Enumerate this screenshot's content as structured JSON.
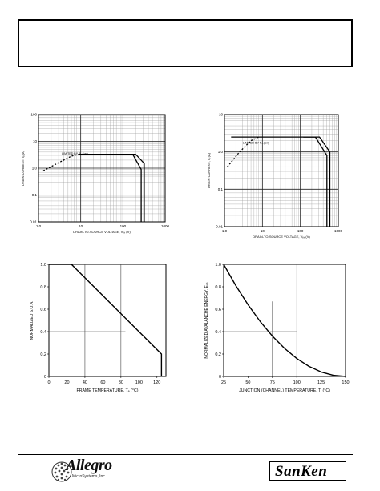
{
  "charts": {
    "soa_tl": {
      "type": "line",
      "scale": "log-log",
      "xlabel": "DRAIN-TO-SOURCE VOLTAGE, Vₑₛ (V)",
      "ylabel": "DRAIN CURRENT, Iₐ (A)",
      "x_ticks": [
        "1.0",
        "10",
        "100",
        "1000"
      ],
      "y_ticks": [
        "100",
        "10",
        "1.0",
        "0.1",
        "0.01"
      ],
      "xlim": [
        1,
        1000
      ],
      "ylim": [
        0.01,
        100
      ],
      "annotation": "LIMITED BY Rₐₛ(on)",
      "series": [
        {
          "style": "dashed",
          "x": [
            1.3,
            3.0,
            6.0,
            9.0
          ],
          "y": [
            0.8,
            1.6,
            2.8,
            3.3
          ]
        },
        {
          "style": "solid",
          "x": [
            9,
            100,
            170,
            270,
            270
          ],
          "y": [
            3.3,
            3.3,
            3.3,
            0.9,
            0.01
          ]
        },
        {
          "style": "solid",
          "x": [
            100,
            200,
            320,
            320
          ],
          "y": [
            3.3,
            3.3,
            1.5,
            0.01
          ]
        }
      ]
    },
    "soa_tr": {
      "type": "line",
      "scale": "log-log",
      "xlabel": "DRAIN-TO-SOURCE VOLTAGE, Vₑₛ (V)",
      "ylabel": "DRAIN CURRENT, Iₐ (A)",
      "x_ticks": [
        "1.0",
        "10",
        "100",
        "1000"
      ],
      "y_ticks": [
        "10",
        "1.0",
        "0.1",
        "0.01"
      ],
      "xlim": [
        1,
        1000
      ],
      "ylim": [
        0.01,
        10
      ],
      "annotation": "LIMITED BY Rₐₛ(on)",
      "series": [
        {
          "style": "dashed",
          "x": [
            1.2,
            2.5,
            5.0,
            8.0
          ],
          "y": [
            0.4,
            1.0,
            2.0,
            2.5
          ]
        },
        {
          "style": "solid",
          "x": [
            1.5,
            120,
            250,
            500,
            500
          ],
          "y": [
            2.5,
            2.5,
            2.5,
            0.8,
            0.01
          ]
        },
        {
          "style": "solid",
          "x": [
            120,
            320,
            600,
            600
          ],
          "y": [
            2.5,
            2.5,
            1.0,
            0.01
          ]
        }
      ]
    },
    "derate": {
      "type": "line",
      "xlabel": "FRAME TEMPERATURE, Tₑ (°C)",
      "ylabel": "NORMALIZED S.O.A.",
      "x_ticks": [
        "0",
        "20",
        "40",
        "60",
        "80",
        "100",
        "120"
      ],
      "y_ticks": [
        "0",
        "0.2",
        "0.4",
        "0.6",
        "0.8",
        "1.0"
      ],
      "xlim": [
        0,
        130
      ],
      "ylim": [
        0,
        1.0
      ],
      "series": [
        {
          "x": [
            0,
            25,
            125,
            125
          ],
          "y": [
            1.0,
            1.0,
            0.2,
            0.0
          ]
        }
      ]
    },
    "aval": {
      "type": "line",
      "xlabel": "JUNCTION (CHANNEL) TEMPERATURE, Tⱼ (°C)",
      "ylabel": "NORMALIZED AVALANCHE ENERGY, Eₐₛ",
      "x_ticks": [
        "25",
        "50",
        "75",
        "100",
        "125",
        "150"
      ],
      "y_ticks": [
        "0",
        "0.2",
        "0.4",
        "0.6",
        "0.8",
        "1.0"
      ],
      "xlim": [
        25,
        150
      ],
      "ylim": [
        0,
        1.0
      ],
      "series": [
        {
          "x": [
            25,
            37.5,
            50,
            62.5,
            75,
            87.5,
            100,
            112.5,
            125,
            137.5,
            150
          ],
          "y": [
            1.0,
            0.81,
            0.64,
            0.49,
            0.36,
            0.25,
            0.16,
            0.09,
            0.04,
            0.01,
            0.0
          ]
        }
      ]
    }
  },
  "footer": {
    "allegro": {
      "name": "Allegro",
      "subtitle": "MicroSystems, Inc."
    },
    "sanken": {
      "name": "SanKen"
    }
  }
}
